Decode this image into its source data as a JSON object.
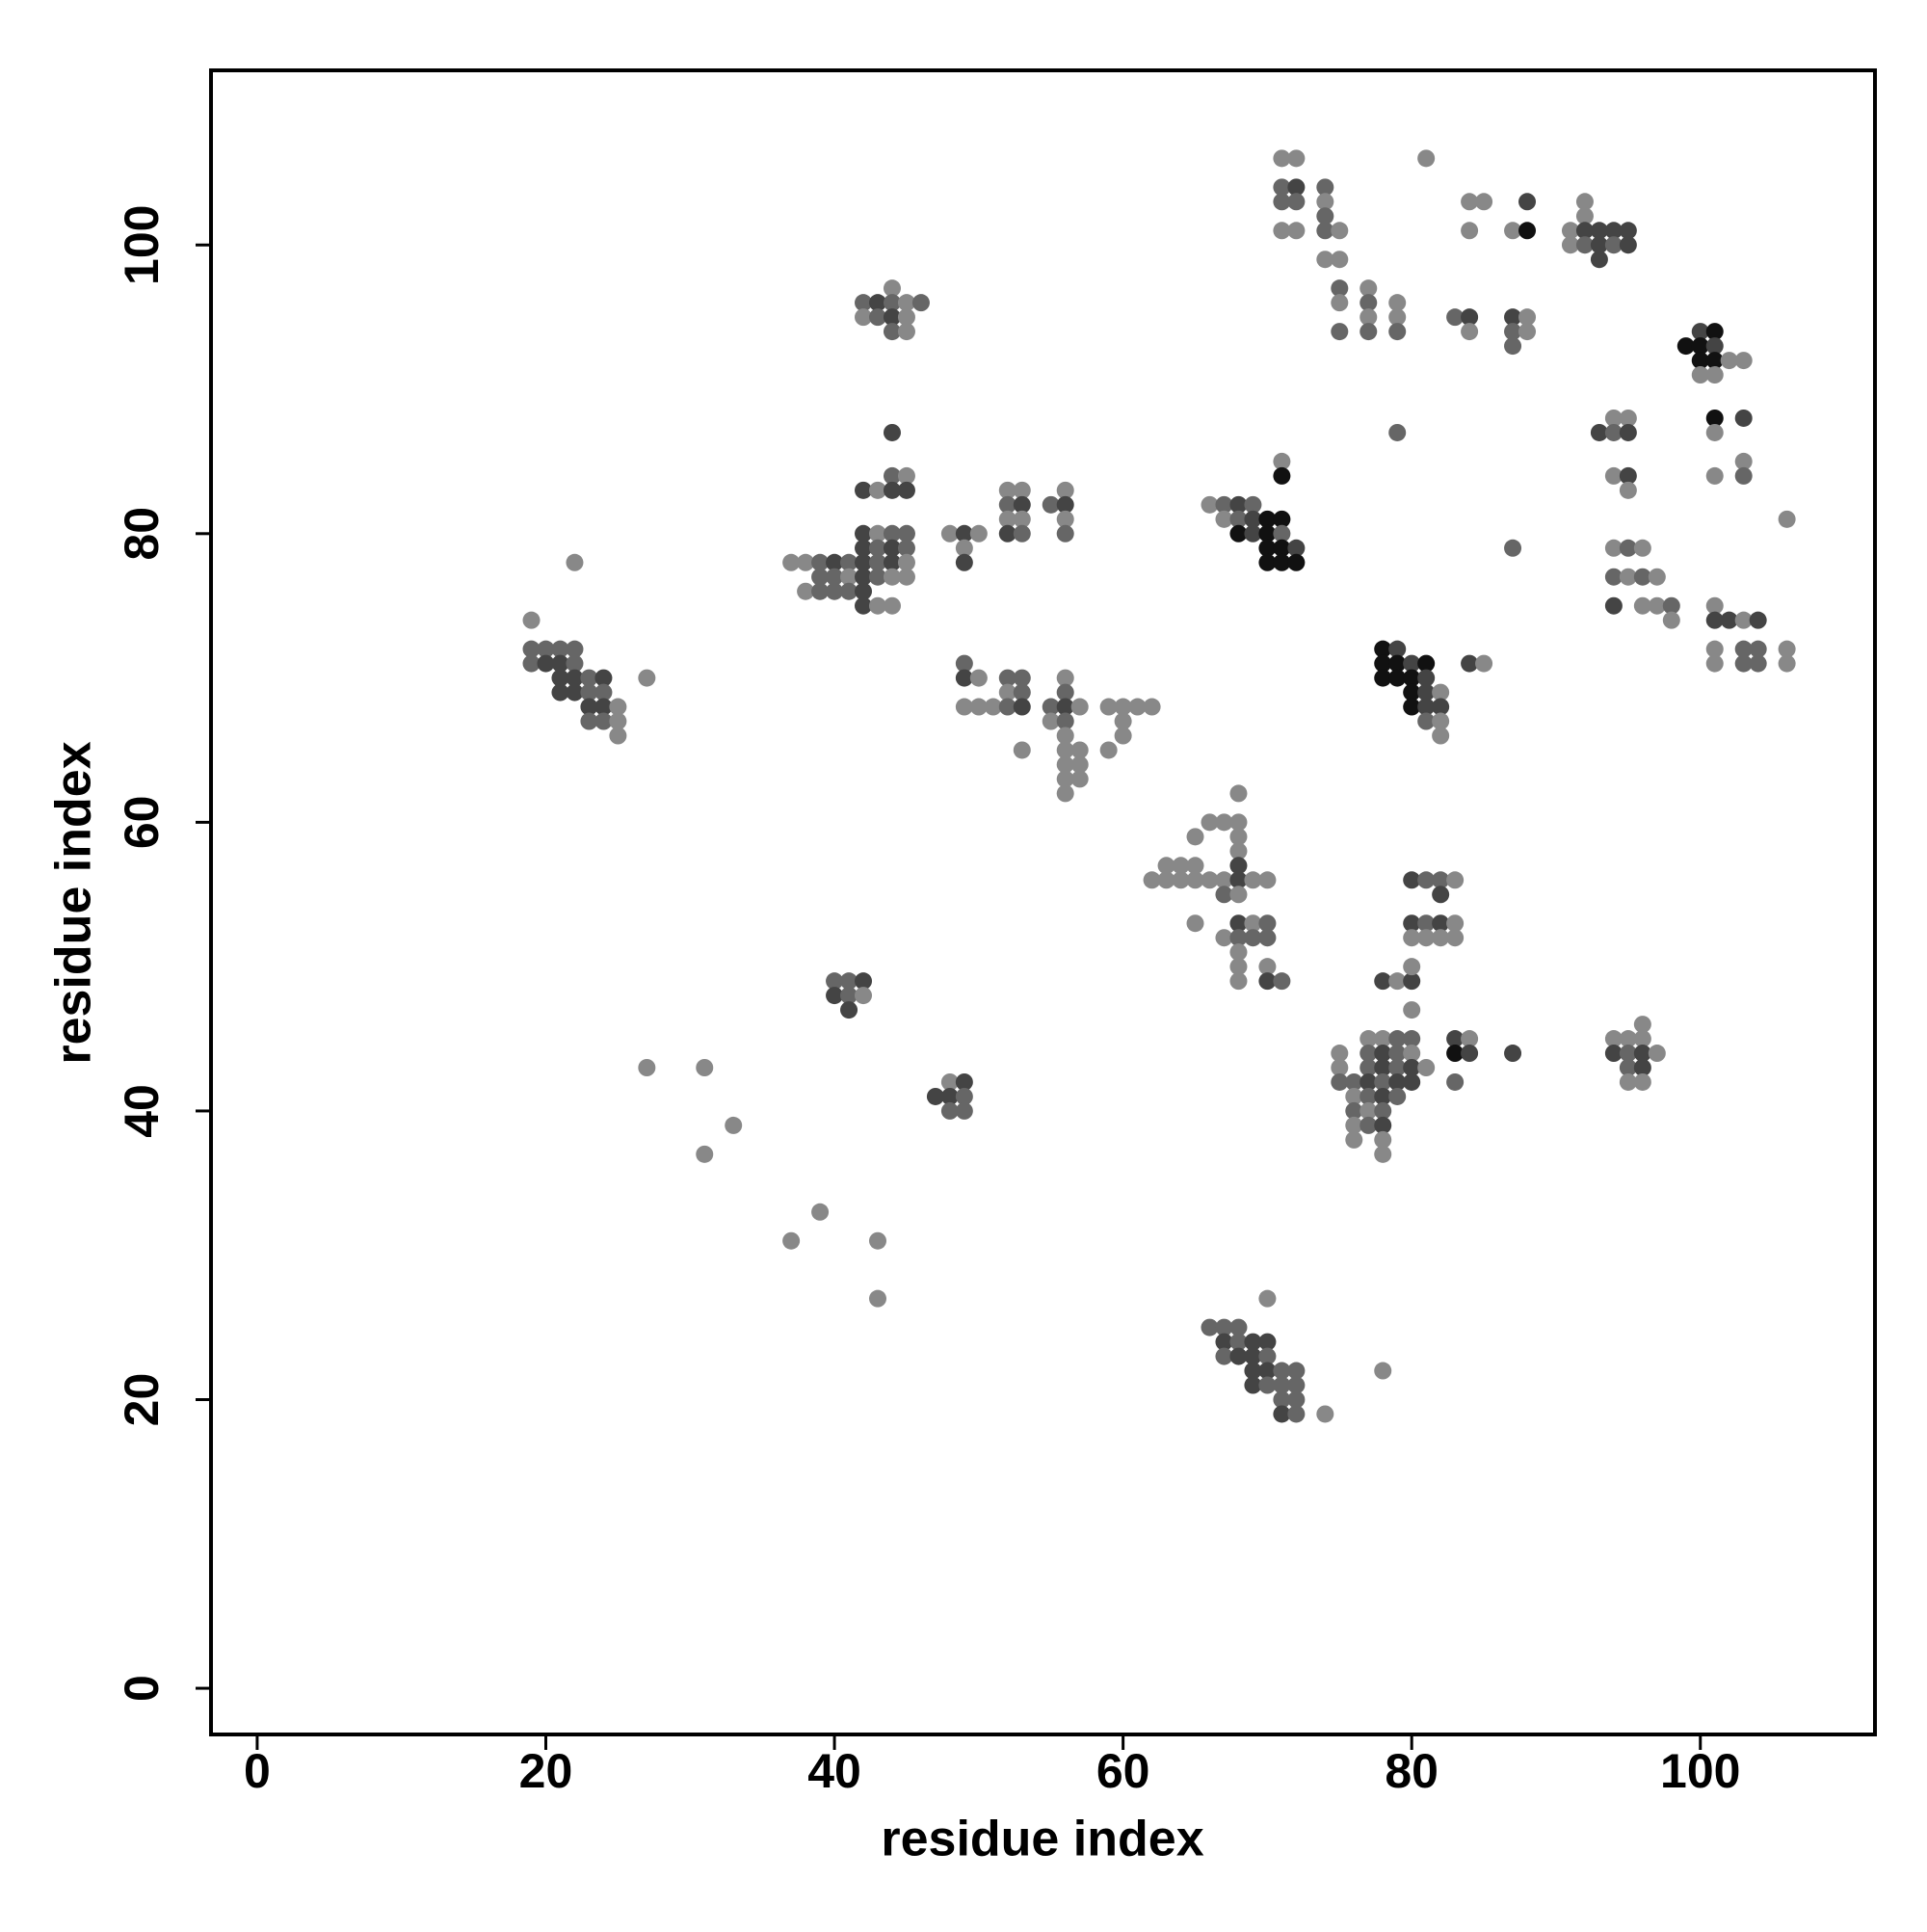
{
  "chart_data": {
    "type": "scatter",
    "xlabel": "residue index",
    "ylabel": "residue index",
    "xlim": [
      -3.2,
      112.1
    ],
    "ylim": [
      -3.2,
      112.1
    ],
    "xticks": [
      0,
      20,
      40,
      60,
      80,
      100
    ],
    "yticks": [
      0,
      20,
      40,
      60,
      80,
      100
    ],
    "x": [
      19,
      19,
      20,
      21,
      22,
      19,
      20,
      21,
      22,
      21,
      22,
      23,
      24,
      27,
      21,
      22,
      23,
      24,
      23,
      24,
      25,
      23,
      24,
      25,
      25,
      22,
      27,
      31,
      33,
      31,
      39,
      37,
      43,
      43,
      40,
      41,
      42,
      40,
      41,
      42,
      41,
      48,
      49,
      47,
      48,
      49,
      48,
      49,
      44,
      44,
      45,
      42,
      43,
      44,
      45,
      42,
      43,
      44,
      45,
      48,
      42,
      43,
      44,
      45,
      37,
      38,
      39,
      40,
      41,
      42,
      43,
      44,
      45,
      39,
      40,
      41,
      42,
      43,
      44,
      45,
      38,
      39,
      40,
      41,
      42,
      42,
      43,
      44,
      49,
      50,
      49,
      49,
      44,
      42,
      43,
      44,
      45,
      46,
      42,
      43,
      44,
      45,
      44,
      45,
      52,
      53,
      56,
      52,
      53,
      55,
      56,
      52,
      53,
      56,
      52,
      53,
      56,
      49,
      49,
      50,
      52,
      53,
      56,
      52,
      53,
      56,
      49,
      50,
      51,
      52,
      53,
      55,
      56,
      57,
      59,
      60,
      61,
      62,
      55,
      56,
      60,
      56,
      60,
      53,
      56,
      57,
      59,
      56,
      57,
      56,
      57,
      56,
      68,
      66,
      67,
      68,
      65,
      68,
      68,
      63,
      64,
      65,
      68,
      62,
      63,
      64,
      65,
      66,
      67,
      68,
      69,
      70,
      67,
      68,
      65,
      68,
      69,
      70,
      67,
      68,
      69,
      70,
      68,
      68,
      70,
      68,
      70,
      71,
      70,
      66,
      67,
      68,
      67,
      68,
      69,
      70,
      67,
      68,
      69,
      70,
      69,
      70,
      71,
      72,
      69,
      70,
      71,
      72,
      71,
      72,
      71,
      72,
      74,
      78,
      71,
      71,
      66,
      67,
      68,
      69,
      67,
      68,
      69,
      70,
      71,
      68,
      69,
      70,
      71,
      70,
      71,
      72,
      70,
      71,
      72,
      71,
      72,
      71,
      72,
      74,
      71,
      72,
      74,
      74,
      71,
      72,
      74,
      75,
      74,
      75,
      75,
      75,
      75,
      77,
      77,
      77,
      77,
      79,
      79,
      79,
      81,
      79,
      84,
      85,
      84,
      87,
      88,
      88,
      83,
      84,
      87,
      88,
      84,
      87,
      88,
      87,
      92,
      92,
      91,
      92,
      93,
      94,
      95,
      91,
      92,
      93,
      94,
      95,
      93,
      100,
      101,
      99,
      100,
      101,
      100,
      101,
      102,
      103,
      100,
      101,
      101,
      103,
      101,
      103,
      101,
      103,
      94,
      95,
      93,
      94,
      95,
      94,
      95,
      95,
      87,
      94,
      95,
      96,
      94,
      95,
      96,
      97,
      94,
      96,
      97,
      106,
      98,
      101,
      98,
      101,
      102,
      103,
      104,
      101,
      103,
      104,
      106,
      101,
      103,
      104,
      106,
      78,
      79,
      78,
      79,
      80,
      81,
      84,
      85,
      78,
      79,
      80,
      81,
      80,
      81,
      82,
      80,
      81,
      82,
      81,
      82,
      82,
      80,
      81,
      82,
      83,
      82,
      80,
      81,
      82,
      83,
      80,
      81,
      82,
      83,
      78,
      79,
      80,
      80,
      80,
      77,
      78,
      79,
      80,
      83,
      84,
      75,
      77,
      78,
      79,
      80,
      83,
      84,
      87,
      75,
      77,
      78,
      79,
      80,
      81,
      75,
      76,
      77,
      78,
      79,
      80,
      83,
      76,
      77,
      78,
      79,
      76,
      77,
      78,
      76,
      77,
      78,
      76,
      78,
      78,
      96,
      94,
      95,
      96,
      94,
      95,
      96,
      97,
      95,
      96,
      95,
      96
    ],
    "values": [
      74,
      72,
      72,
      72,
      72,
      71,
      71,
      71,
      71,
      70,
      70,
      70,
      70,
      70,
      69,
      69,
      69,
      69,
      68,
      68,
      68,
      67,
      67,
      67,
      66,
      78,
      43,
      43,
      39,
      37,
      33,
      31,
      31,
      27,
      49,
      49,
      49,
      48,
      48,
      48,
      47,
      42,
      42,
      41,
      41,
      41,
      40,
      40,
      87,
      84,
      84,
      83,
      83,
      83,
      83,
      80,
      80,
      80,
      80,
      80,
      79,
      79,
      79,
      79,
      78,
      78,
      78,
      78,
      78,
      78,
      78,
      78,
      78,
      77,
      77,
      77,
      77,
      77,
      77,
      77,
      76,
      76,
      76,
      76,
      76,
      75,
      75,
      75,
      80,
      80,
      79,
      78,
      97,
      96,
      96,
      96,
      96,
      96,
      95,
      95,
      95,
      95,
      94,
      94,
      83,
      83,
      83,
      82,
      82,
      82,
      82,
      81,
      81,
      81,
      80,
      80,
      80,
      71,
      70,
      70,
      70,
      70,
      70,
      69,
      69,
      69,
      68,
      68,
      68,
      68,
      68,
      68,
      68,
      68,
      68,
      68,
      68,
      68,
      67,
      67,
      67,
      66,
      66,
      65,
      65,
      65,
      65,
      64,
      64,
      63,
      63,
      62,
      62,
      60,
      60,
      60,
      59,
      59,
      58,
      57,
      57,
      57,
      57,
      56,
      56,
      56,
      56,
      56,
      56,
      56,
      56,
      56,
      55,
      55,
      53,
      53,
      53,
      53,
      52,
      52,
      52,
      52,
      51,
      50,
      50,
      49,
      49,
      49,
      27,
      25,
      25,
      25,
      24,
      24,
      24,
      24,
      23,
      23,
      23,
      23,
      22,
      22,
      22,
      22,
      21,
      21,
      21,
      21,
      20,
      20,
      19,
      19,
      19,
      22,
      85,
      84,
      82,
      82,
      82,
      82,
      81,
      81,
      81,
      81,
      81,
      80,
      80,
      80,
      80,
      79,
      79,
      79,
      78,
      78,
      78,
      106,
      106,
      104,
      104,
      104,
      103,
      103,
      103,
      102,
      101,
      101,
      101,
      101,
      99,
      99,
      97,
      96,
      94,
      97,
      96,
      95,
      94,
      96,
      95,
      94,
      106,
      87,
      103,
      103,
      101,
      101,
      103,
      101,
      95,
      95,
      95,
      95,
      94,
      94,
      94,
      93,
      103,
      102,
      101,
      101,
      101,
      101,
      101,
      100,
      100,
      100,
      100,
      100,
      99,
      94,
      94,
      93,
      93,
      93,
      92,
      92,
      92,
      92,
      91,
      91,
      88,
      88,
      87,
      85,
      84,
      84,
      88,
      88,
      87,
      87,
      87,
      84,
      84,
      83,
      79,
      79,
      79,
      79,
      77,
      77,
      77,
      77,
      75,
      75,
      75,
      81,
      75,
      75,
      74,
      74,
      74,
      74,
      74,
      72,
      72,
      72,
      72,
      71,
      71,
      71,
      71,
      72,
      72,
      71,
      71,
      71,
      71,
      71,
      71,
      70,
      70,
      70,
      70,
      69,
      69,
      69,
      68,
      68,
      68,
      67,
      67,
      66,
      56,
      56,
      56,
      56,
      55,
      53,
      53,
      53,
      53,
      52,
      52,
      52,
      52,
      49,
      49,
      49,
      50,
      47,
      45,
      45,
      45,
      45,
      45,
      45,
      44,
      44,
      44,
      44,
      44,
      44,
      44,
      44,
      43,
      43,
      43,
      43,
      43,
      43,
      42,
      42,
      42,
      42,
      42,
      42,
      42,
      41,
      41,
      41,
      41,
      40,
      40,
      40,
      39,
      39,
      39,
      38,
      38,
      37,
      46,
      45,
      45,
      45,
      44,
      44,
      44,
      44,
      43,
      43,
      42,
      42
    ],
    "colors": [
      "#888",
      "#666",
      "#666",
      "#666",
      "#666",
      "#666",
      "#444",
      "#444",
      "#666",
      "#444",
      "#444",
      "#666",
      "#444",
      "#888",
      "#444",
      "#444",
      "#666",
      "#666",
      "#444",
      "#444",
      "#888",
      "#666",
      "#666",
      "#888",
      "#888",
      "#888",
      "#888",
      "#888",
      "#888",
      "#888",
      "#888",
      "#888",
      "#888",
      "#888",
      "#666",
      "#666",
      "#444",
      "#444",
      "#666",
      "#888",
      "#444",
      "#888",
      "#444",
      "#444",
      "#444",
      "#666",
      "#666",
      "#666",
      "#444",
      "#666",
      "#888",
      "#444",
      "#888",
      "#444",
      "#444",
      "#444",
      "#888",
      "#666",
      "#666",
      "#888",
      "#444",
      "#666",
      "#444",
      "#666",
      "#888",
      "#888",
      "#666",
      "#444",
      "#666",
      "#444",
      "#666",
      "#444",
      "#888",
      "#666",
      "#666",
      "#888",
      "#444",
      "#666",
      "#888",
      "#888",
      "#888",
      "#666",
      "#666",
      "#666",
      "#444",
      "#444",
      "#888",
      "#888",
      "#444",
      "#888",
      "#888",
      "#444",
      "#888",
      "#666",
      "#444",
      "#666",
      "#888",
      "#666",
      "#888",
      "#666",
      "#444",
      "#888",
      "#666",
      "#888",
      "#888",
      "#888",
      "#888",
      "#666",
      "#444",
      "#666",
      "#444",
      "#888",
      "#888",
      "#888",
      "#444",
      "#666",
      "#666",
      "#666",
      "#444",
      "#888",
      "#666",
      "#666",
      "#888",
      "#888",
      "#666",
      "#666",
      "#888",
      "#888",
      "#888",
      "#666",
      "#444",
      "#666",
      "#444",
      "#888",
      "#888",
      "#888",
      "#888",
      "#888",
      "#888",
      "#666",
      "#888",
      "#888",
      "#888",
      "#888",
      "#888",
      "#888",
      "#888",
      "#888",
      "#888",
      "#888",
      "#888",
      "#888",
      "#888",
      "#888",
      "#888",
      "#888",
      "#888",
      "#888",
      "#888",
      "#888",
      "#888",
      "#888",
      "#444",
      "#888",
      "#888",
      "#888",
      "#888",
      "#888",
      "#888",
      "#444",
      "#888",
      "#888",
      "#666",
      "#888",
      "#888",
      "#444",
      "#888",
      "#666",
      "#888",
      "#666",
      "#666",
      "#666",
      "#888",
      "#888",
      "#888",
      "#888",
      "#444",
      "#666",
      "#888",
      "#666",
      "#666",
      "#666",
      "#444",
      "#666",
      "#444",
      "#444",
      "#666",
      "#444",
      "#444",
      "#666",
      "#444",
      "#444",
      "#666",
      "#666",
      "#444",
      "#666",
      "#666",
      "#666",
      "#666",
      "#666",
      "#444",
      "#666",
      "#888",
      "#888",
      "#888",
      "#111",
      "#888",
      "#666",
      "#444",
      "#666",
      "#888",
      "#666",
      "#444",
      "#111",
      "#111",
      "#111",
      "#444",
      "#111",
      "#666",
      "#111",
      "#111",
      "#444",
      "#111",
      "#111",
      "#111",
      "#888",
      "#888",
      "#666",
      "#444",
      "#666",
      "#666",
      "#666",
      "#888",
      "#666",
      "#888",
      "#888",
      "#666",
      "#888",
      "#888",
      "#888",
      "#666",
      "#888",
      "#666",
      "#888",
      "#666",
      "#888",
      "#666",
      "#888",
      "#888",
      "#666",
      "#888",
      "#666",
      "#888",
      "#888",
      "#888",
      "#888",
      "#444",
      "#111",
      "#666",
      "#444",
      "#444",
      "#888",
      "#888",
      "#666",
      "#888",
      "#666",
      "#888",
      "#888",
      "#888",
      "#444",
      "#444",
      "#444",
      "#444",
      "#888",
      "#666",
      "#444",
      "#666",
      "#444",
      "#444",
      "#444",
      "#111",
      "#111",
      "#111",
      "#444",
      "#111",
      "#111",
      "#888",
      "#888",
      "#888",
      "#888",
      "#111",
      "#444",
      "#888",
      "#888",
      "#888",
      "#666",
      "#888",
      "#888",
      "#444",
      "#666",
      "#444",
      "#888",
      "#444",
      "#888",
      "#666",
      "#888",
      "#666",
      "#888",
      "#666",
      "#888",
      "#666",
      "#888",
      "#444",
      "#888",
      "#888",
      "#888",
      "#666",
      "#888",
      "#888",
      "#444",
      "#444",
      "#888",
      "#444",
      "#888",
      "#666",
      "#666",
      "#888",
      "#888",
      "#666",
      "#666",
      "#888",
      "#111",
      "#444",
      "#111",
      "#111",
      "#444",
      "#111",
      "#444",
      "#888",
      "#111",
      "#111",
      "#111",
      "#444",
      "#111",
      "#444",
      "#888",
      "#111",
      "#444",
      "#444",
      "#666",
      "#888",
      "#888",
      "#444",
      "#666",
      "#666",
      "#888",
      "#444",
      "#444",
      "#666",
      "#444",
      "#888",
      "#888",
      "#888",
      "#888",
      "#888",
      "#444",
      "#888",
      "#444",
      "#888",
      "#888",
      "#888",
      "#888",
      "#666",
      "#666",
      "#444",
      "#888",
      "#888",
      "#666",
      "#444",
      "#666",
      "#888",
      "#111",
      "#444",
      "#444",
      "#888",
      "#666",
      "#444",
      "#666",
      "#444",
      "#888",
      "#666",
      "#666",
      "#444",
      "#666",
      "#444",
      "#444",
      "#666",
      "#888",
      "#666",
      "#444",
      "#666",
      "#666",
      "#888",
      "#666",
      "#888",
      "#666",
      "#444",
      "#888",
      "#888",
      "#888",
      "#888",
      "#888",
      "#888",
      "#888",
      "#444",
      "#666",
      "#444",
      "#888",
      "#666",
      "#444",
      "#888",
      "#888"
    ]
  }
}
